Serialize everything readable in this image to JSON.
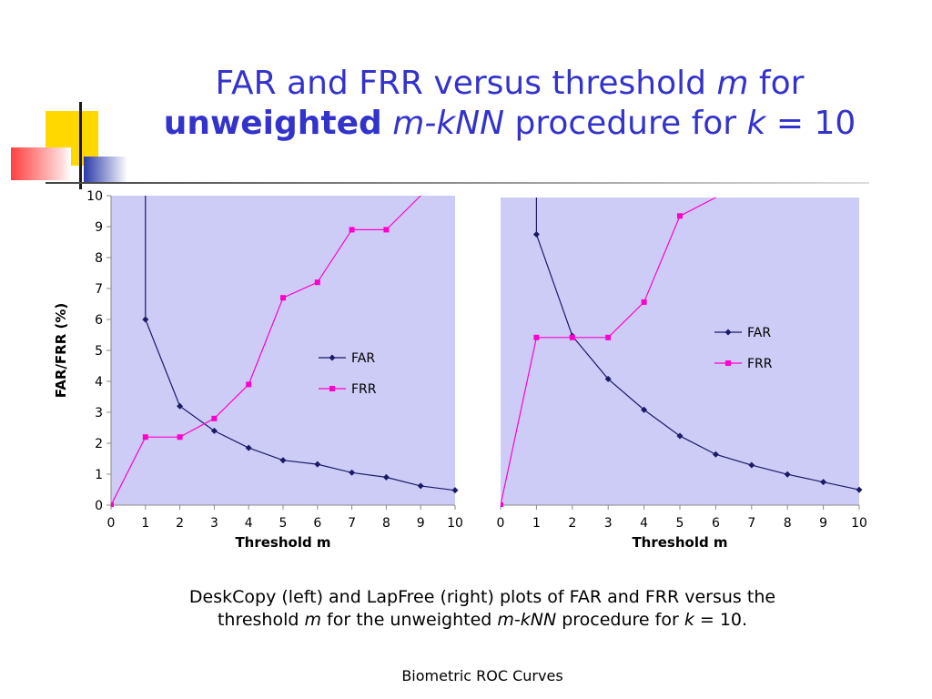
{
  "title": {
    "line1": {
      "main": "FAR and FRR versus threshold ",
      "var": "m",
      "tail": " for"
    },
    "line2": {
      "bold": "unweighted",
      "var1": "m-kNN",
      "mid": " procedure for ",
      "var2": "k",
      "tail": " = 10"
    }
  },
  "caption": {
    "line1": "DeskCopy (left) and LapFree (right) plots of FAR and FRR versus the",
    "line2": {
      "pre": "threshold ",
      "var1": "m",
      "mid1": " for the unweighted ",
      "var2": "m-kNN",
      "mid2": " procedure for ",
      "var3": "k",
      "tail": " = 10."
    }
  },
  "footer": "Biometric ROC Curves",
  "accent_colors": {
    "yellow": "#ffd800",
    "red": "#ff4040",
    "blue": "#2b3aa8",
    "line": "#1a1a1a"
  },
  "chart_data": [
    {
      "type": "line",
      "name": "DeskCopy",
      "xlabel": "Threshold m",
      "ylabel": "FAR/FRR  (%)",
      "xlim": [
        0,
        10
      ],
      "ylim": [
        0,
        10
      ],
      "xticks": [
        "0",
        "1",
        "2",
        "3",
        "4",
        "5",
        "6",
        "7",
        "8",
        "9",
        "10"
      ],
      "yticks": [
        "0",
        "1",
        "2",
        "3",
        "4",
        "5",
        "6",
        "7",
        "8",
        "9",
        "10"
      ],
      "legend": "right",
      "plot_bg": "#ccccf7",
      "series": [
        {
          "name": "FAR",
          "color": "#1a1a66",
          "marker": "diamond",
          "x": [
            1,
            1,
            2,
            3,
            4,
            5,
            6,
            7,
            8,
            9,
            10
          ],
          "y": [
            10,
            6.0,
            3.2,
            2.4,
            1.85,
            1.45,
            1.32,
            1.05,
            0.9,
            0.62,
            0.48
          ]
        },
        {
          "name": "FRR",
          "color": "#ff00cc",
          "marker": "square",
          "x": [
            0,
            1,
            2,
            3,
            4,
            5,
            6,
            7,
            8,
            9
          ],
          "y": [
            0,
            2.2,
            2.2,
            2.8,
            3.9,
            6.7,
            7.2,
            8.9,
            8.9,
            10
          ]
        }
      ]
    },
    {
      "type": "line",
      "name": "LapFree",
      "xlabel": "Threshold m",
      "ylabel": "",
      "xlim": [
        0,
        10
      ],
      "ylim": [
        0,
        10
      ],
      "xticks": [
        "0",
        "1",
        "2",
        "3",
        "4",
        "5",
        "6",
        "7",
        "8",
        "9",
        "10"
      ],
      "yticks": [],
      "legend": "right",
      "plot_bg": "#ccccf7",
      "series": [
        {
          "name": "FAR",
          "color": "#1a1a66",
          "marker": "diamond",
          "x": [
            1,
            1,
            2,
            3,
            4,
            5,
            6,
            7,
            8,
            9,
            10
          ],
          "y": [
            10,
            8.8,
            5.5,
            4.1,
            3.1,
            2.25,
            1.65,
            1.3,
            1.0,
            0.75,
            0.5
          ]
        },
        {
          "name": "FRR",
          "color": "#ff00cc",
          "marker": "square",
          "x": [
            0,
            1,
            2,
            3,
            4,
            5,
            6
          ],
          "y": [
            0,
            5.45,
            5.45,
            5.45,
            6.6,
            9.4,
            10
          ]
        }
      ]
    }
  ]
}
